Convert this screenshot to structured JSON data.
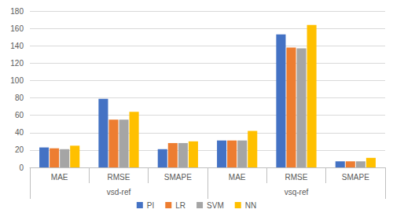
{
  "chart_data": {
    "type": "bar",
    "categories": [
      "MAE",
      "RMSE",
      "SMAPE",
      "MAE",
      "RMSE",
      "SMAPE"
    ],
    "category_groups": [
      "vsd-ref",
      "vsd-ref",
      "vsd-ref",
      "vsq-ref",
      "vsq-ref",
      "vsq-ref"
    ],
    "series": [
      {
        "name": "PI",
        "color": "#4472C4",
        "values": [
          23,
          79,
          21,
          31,
          153,
          7
        ]
      },
      {
        "name": "LR",
        "color": "#ED7D31",
        "values": [
          22,
          55,
          28,
          31,
          138,
          7
        ]
      },
      {
        "name": "SVM",
        "color": "#A5A5A5",
        "values": [
          21,
          55,
          28,
          31,
          137,
          7
        ]
      },
      {
        "name": "NN",
        "color": "#FFC000",
        "values": [
          25,
          64,
          30,
          42,
          164,
          11
        ]
      }
    ],
    "ylim": [
      0,
      180
    ],
    "yticks": [
      0,
      20,
      40,
      60,
      80,
      100,
      120,
      140,
      160,
      180
    ],
    "grid": true,
    "legend": "bottom"
  }
}
